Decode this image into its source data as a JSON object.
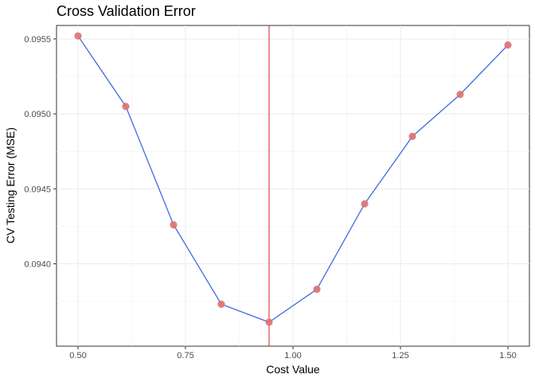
{
  "chart_data": {
    "type": "line",
    "title": "Cross Validation Error",
    "xlabel": "Cost Value",
    "ylabel": "CV Testing Error (MSE)",
    "xlim": [
      0.45,
      1.55
    ],
    "ylim": [
      0.09345,
      0.09559
    ],
    "x_ticks": [
      0.5,
      0.75,
      1.0,
      1.25,
      1.5
    ],
    "x_tick_labels": [
      "0.50",
      "0.75",
      "1.00",
      "1.25",
      "1.50"
    ],
    "y_ticks": [
      0.094,
      0.0945,
      0.095,
      0.0955
    ],
    "y_tick_labels": [
      "0.0940",
      "0.0945",
      "0.0950",
      "0.0955"
    ],
    "grid": true,
    "series": [
      {
        "x": [
          0.5,
          0.6111,
          0.7222,
          0.8333,
          0.9444,
          1.0556,
          1.1667,
          1.2778,
          1.3889,
          1.5
        ],
        "y": [
          0.09552,
          0.09505,
          0.09426,
          0.09373,
          0.09361,
          0.09383,
          0.0944,
          0.09485,
          0.09513,
          0.09546
        ],
        "line_color": "#4169e1",
        "marker_color": "#e07070"
      }
    ],
    "vline": {
      "x": 0.9444,
      "color": "#e03030"
    }
  }
}
